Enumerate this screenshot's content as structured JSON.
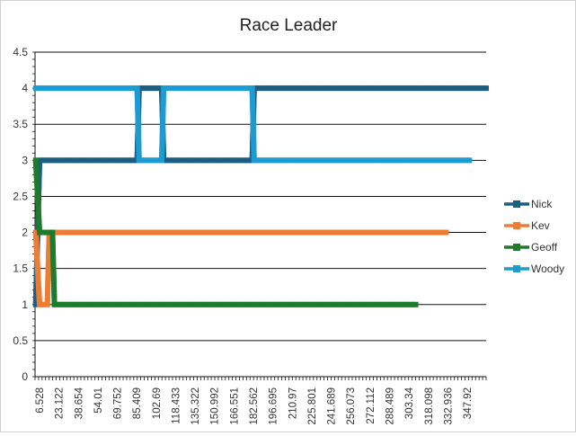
{
  "chart_data": {
    "type": "line",
    "title": "Race Leader",
    "xlabel": "",
    "ylabel": "",
    "ylim": [
      0,
      4.5
    ],
    "yticks": [
      "0",
      "0.5",
      "1",
      "1.5",
      "2",
      "2.5",
      "3",
      "3.5",
      "4",
      "4.5"
    ],
    "xticks": [
      "6.528",
      "23.122",
      "38.654",
      "54.01",
      "69.752",
      "85.409",
      "102.69",
      "118.433",
      "135.322",
      "150.992",
      "166.551",
      "182.562",
      "196.695",
      "210.97",
      "225.801",
      "241.689",
      "256.073",
      "272.112",
      "288.489",
      "303.34",
      "318.098",
      "332.936",
      "347.92"
    ],
    "grid": "horizontal",
    "legend": "right",
    "colors": {
      "Nick": "#1b5e82",
      "Kev": "#ee7d33",
      "Geoff": "#1f7a2c",
      "Woody": "#1d9bd3"
    },
    "series": [
      {
        "name": "Nick",
        "points": [
          [
            6.528,
            1
          ],
          [
            9.5,
            3
          ],
          [
            85.0,
            3
          ],
          [
            86.5,
            4
          ],
          [
            104.0,
            4
          ],
          [
            105.5,
            3
          ],
          [
            174.0,
            3
          ],
          [
            175.5,
            4
          ],
          [
            355.0,
            4
          ]
        ]
      },
      {
        "name": "Kev",
        "points": [
          [
            6.528,
            2
          ],
          [
            9.5,
            1
          ],
          [
            15.5,
            1
          ],
          [
            17.0,
            2
          ],
          [
            324.0,
            2
          ]
        ]
      },
      {
        "name": "Geoff",
        "points": [
          [
            6.528,
            3
          ],
          [
            9.5,
            2
          ],
          [
            19.5,
            2
          ],
          [
            21.0,
            1
          ],
          [
            300.5,
            1
          ]
        ]
      },
      {
        "name": "Woody",
        "points": [
          [
            6.528,
            4
          ],
          [
            85.0,
            4
          ],
          [
            86.5,
            3
          ],
          [
            104.0,
            3
          ],
          [
            105.5,
            4
          ],
          [
            174.0,
            4
          ],
          [
            175.5,
            3
          ],
          [
            342.0,
            3
          ]
        ]
      }
    ]
  }
}
